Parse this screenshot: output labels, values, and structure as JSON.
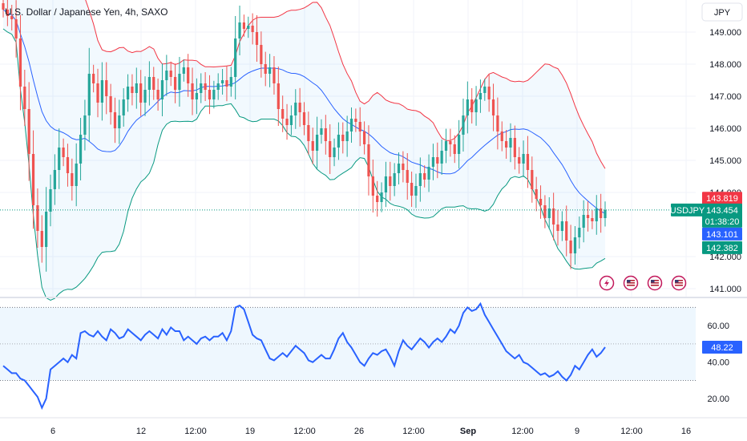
{
  "header": {
    "title": "U.S. Dollar / Japanese Yen, 4h, SAXO",
    "currency_button": "JPY"
  },
  "colors": {
    "up": "#26a69a",
    "down": "#ef5350",
    "upper_band": "#f23645",
    "basis": "#2962ff",
    "lower_band": "#089981",
    "band_fill": "#2196f3",
    "rsi_line": "#2962ff",
    "rsi_fill": "#7e57c2",
    "price_tag_last": "#089981",
    "price_tag_upper": "#f23645",
    "price_tag_basis": "#2962ff",
    "symbol_tag": "#089981"
  },
  "icons": [
    "lightning-icon",
    "us-flag-icon",
    "us-flag-icon",
    "us-flag-icon"
  ],
  "chart_data": [
    {
      "type": "candlestick",
      "title": "U.S. Dollar / Japanese Yen, 4h, SAXO",
      "symbol": "USDJPY",
      "ylim": [
        140.75,
        150.0
      ],
      "y_ticks": [
        "149.000",
        "148.000",
        "147.000",
        "146.000",
        "145.000",
        "144.000",
        "142.000",
        "141.000"
      ],
      "x_ticks": [
        "6",
        "12",
        "12:00",
        "19",
        "12:00",
        "26",
        "12:00",
        "Sep",
        "12:00",
        "9",
        "12:00",
        "16"
      ],
      "close": [
        149.7,
        149.5,
        149.4,
        148.8,
        147.3,
        146.6,
        145.2,
        143.6,
        142.8,
        142.3,
        143.4,
        144.1,
        144.7,
        145.4,
        145.1,
        144.6,
        144.2,
        144.9,
        145.8,
        146.4,
        147.7,
        147.4,
        146.8,
        147.5,
        147.0,
        146.5,
        146.0,
        146.4,
        146.9,
        147.3,
        147.1,
        147.4,
        146.8,
        147.2,
        147.6,
        147.2,
        146.9,
        147.5,
        147.8,
        147.6,
        147.2,
        147.7,
        147.9,
        147.4,
        146.9,
        147.1,
        147.4,
        147.2,
        146.9,
        147.2,
        147.4,
        147.5,
        147.3,
        147.6,
        148.8,
        149.3,
        149.1,
        149.2,
        149.0,
        148.6,
        148.0,
        147.7,
        147.9,
        147.4,
        146.6,
        146.3,
        146.1,
        146.4,
        146.8,
        146.5,
        146.1,
        145.6,
        145.3,
        145.8,
        146.0,
        145.6,
        145.1,
        145.4,
        145.8,
        145.6,
        145.9,
        146.3,
        146.2,
        145.9,
        145.5,
        144.5,
        143.9,
        143.7,
        144.0,
        144.5,
        144.2,
        144.6,
        144.9,
        144.7,
        144.3,
        143.9,
        144.2,
        144.6,
        144.4,
        144.8,
        145.1,
        144.9,
        145.3,
        145.6,
        145.5,
        145.2,
        145.8,
        146.4,
        146.9,
        146.5,
        146.9,
        147.1,
        147.3,
        146.9,
        146.4,
        145.9,
        145.6,
        145.4,
        145.7,
        145.1,
        144.9,
        145.2,
        144.7,
        144.1,
        143.8,
        143.6,
        143.2,
        143.5,
        143.0,
        142.8,
        143.1,
        142.5,
        142.1,
        142.6,
        142.9,
        143.3,
        143.2,
        143.1,
        143.5,
        143.2,
        143.454
      ],
      "last_price": "143.454",
      "countdown": "01:38:20",
      "bollinger_tags": {
        "upper": "143.819",
        "basis": "143.101",
        "lower": "142.382"
      }
    },
    {
      "type": "line",
      "indicator": "RSI",
      "ylim": [
        10,
        75
      ],
      "y_ticks": [
        "60.00",
        "40.00",
        "20.00"
      ],
      "bands": [
        30,
        70
      ],
      "midline": 50,
      "last_value": "48.22",
      "values": [
        38,
        36,
        34,
        34,
        31,
        30,
        27,
        24,
        21,
        15,
        20,
        36,
        38,
        40,
        42,
        40,
        44,
        42,
        56,
        57,
        55,
        54,
        57,
        54,
        52,
        58,
        56,
        53,
        54,
        58,
        56,
        54,
        52,
        55,
        57,
        55,
        53,
        58,
        55,
        59,
        57,
        57,
        52,
        54,
        52,
        50,
        53,
        54,
        52,
        54,
        54,
        56,
        52,
        57,
        70,
        71,
        69,
        62,
        55,
        53,
        52,
        47,
        42,
        41,
        43,
        45,
        43,
        46,
        49,
        47,
        45,
        41,
        40,
        42,
        44,
        42,
        42,
        47,
        53,
        56,
        51,
        48,
        44,
        40,
        38,
        42,
        45,
        44,
        46,
        47,
        43,
        38,
        46,
        52,
        49,
        47,
        50,
        53,
        51,
        48,
        51,
        53,
        51,
        54,
        58,
        56,
        60,
        67,
        70,
        68,
        69,
        72,
        66,
        62,
        58,
        54,
        50,
        46,
        44,
        42,
        44,
        40,
        39,
        37,
        35,
        33,
        34,
        32,
        33,
        35,
        32,
        30,
        33,
        38,
        36,
        40,
        44,
        47,
        43,
        45,
        48.22
      ]
    }
  ]
}
